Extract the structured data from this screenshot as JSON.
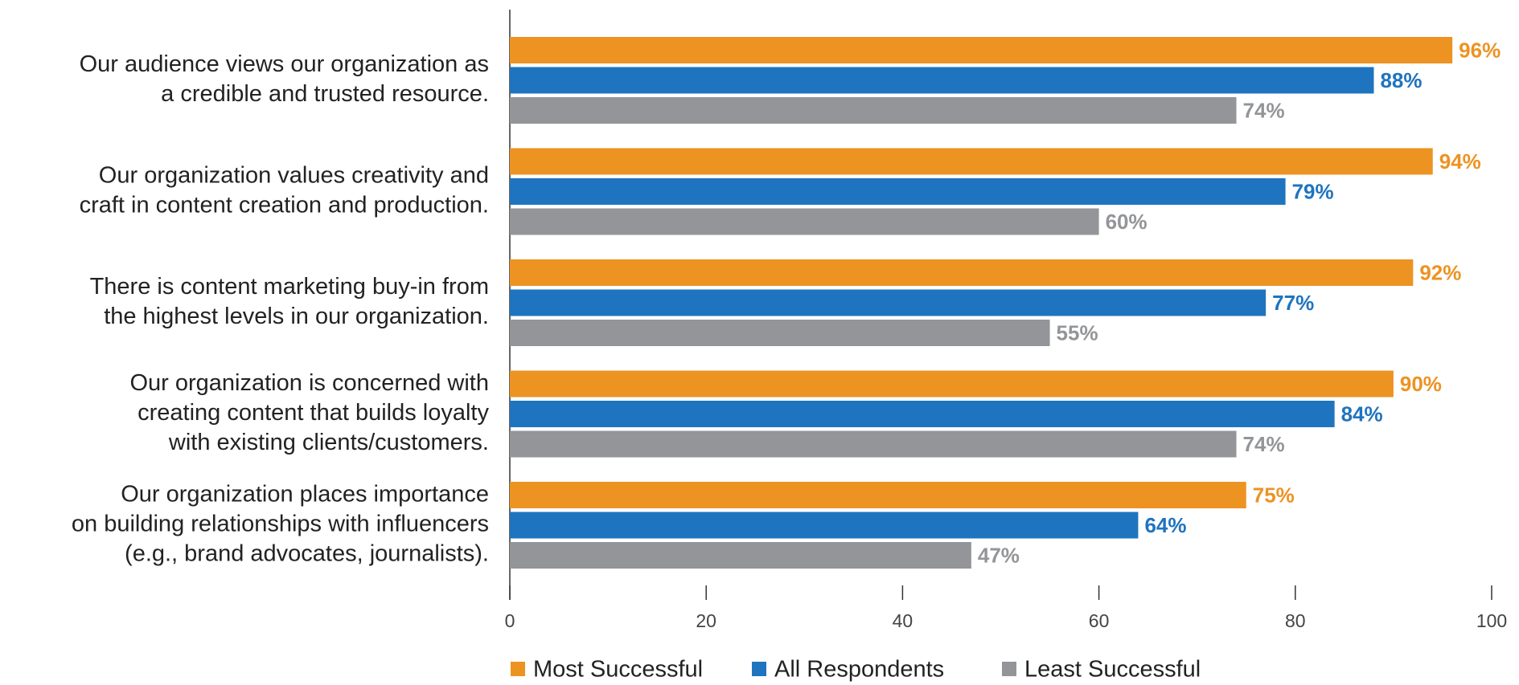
{
  "chart_data": {
    "type": "hbar",
    "categories": [
      [
        "Our audience views our organization as",
        "a credible and trusted resource."
      ],
      [
        "Our organization values creativity and",
        "craft in content creation and production."
      ],
      [
        "There is content marketing buy-in from",
        "the highest levels in our organization."
      ],
      [
        "Our organization is concerned with",
        "creating content that builds loyalty",
        "with existing clients/customers."
      ],
      [
        "Our organization places importance",
        "on building relationships with influencers",
        "(e.g., brand advocates, journalists)."
      ]
    ],
    "series": [
      {
        "name": "Most Successful",
        "color": "#ec9322",
        "values": [
          96,
          94,
          92,
          90,
          75
        ],
        "value_labels": [
          "96%",
          "94%",
          "92%",
          "90%",
          "75%"
        ]
      },
      {
        "name": "All Respondents",
        "color": "#1f74bf",
        "values": [
          88,
          79,
          77,
          84,
          64
        ],
        "value_labels": [
          "88%",
          "79%",
          "77%",
          "84%",
          "64%"
        ]
      },
      {
        "name": "Least Successful",
        "color": "#939598",
        "values": [
          74,
          60,
          55,
          74,
          47
        ],
        "value_labels": [
          "74%",
          "60%",
          "55%",
          "74%",
          "47%"
        ]
      }
    ],
    "xlim": [
      0,
      100
    ],
    "xticks": [
      0,
      20,
      40,
      60,
      80,
      100
    ],
    "legend": "bottom"
  }
}
